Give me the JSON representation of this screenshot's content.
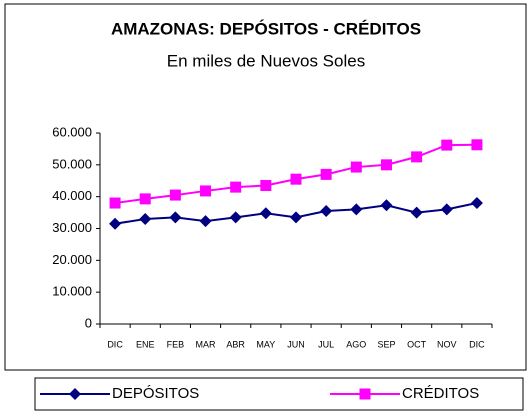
{
  "chart_data": {
    "type": "line",
    "title": "AMAZONAS: DEPÓSITOS - CRÉDITOS",
    "subtitle": "En miles de Nuevos Soles",
    "categories": [
      "DIC",
      "ENE",
      "FEB",
      "MAR",
      "ABR",
      "MAY",
      "JUN",
      "JUL",
      "AGO",
      "SEP",
      "OCT",
      "NOV",
      "DIC"
    ],
    "series": [
      {
        "name": "DEPÓSITOS",
        "color": "#000080",
        "marker": "diamond",
        "values": [
          31500,
          33000,
          33500,
          32300,
          33500,
          34800,
          33500,
          35500,
          36000,
          37300,
          35000,
          36000,
          38000
        ]
      },
      {
        "name": "CRÉDITOS",
        "color": "#ff00ff",
        "marker": "square",
        "values": [
          38000,
          39300,
          40500,
          41800,
          43000,
          43500,
          45500,
          47000,
          49300,
          50000,
          52500,
          56200,
          56300
        ]
      }
    ],
    "ylim": [
      0,
      60000
    ],
    "yticks": [
      0,
      {
        "value": 10000,
        "label": "10.000"
      },
      {
        "value": 20000,
        "label": "20.000"
      },
      {
        "value": 30000,
        "label": "30.000"
      },
      {
        "value": 40000,
        "label": "40.000"
      },
      {
        "value": 50000,
        "label": "50.000"
      },
      {
        "value": 60000,
        "label": "60.000"
      }
    ],
    "grid": false,
    "legend": "bottom"
  }
}
